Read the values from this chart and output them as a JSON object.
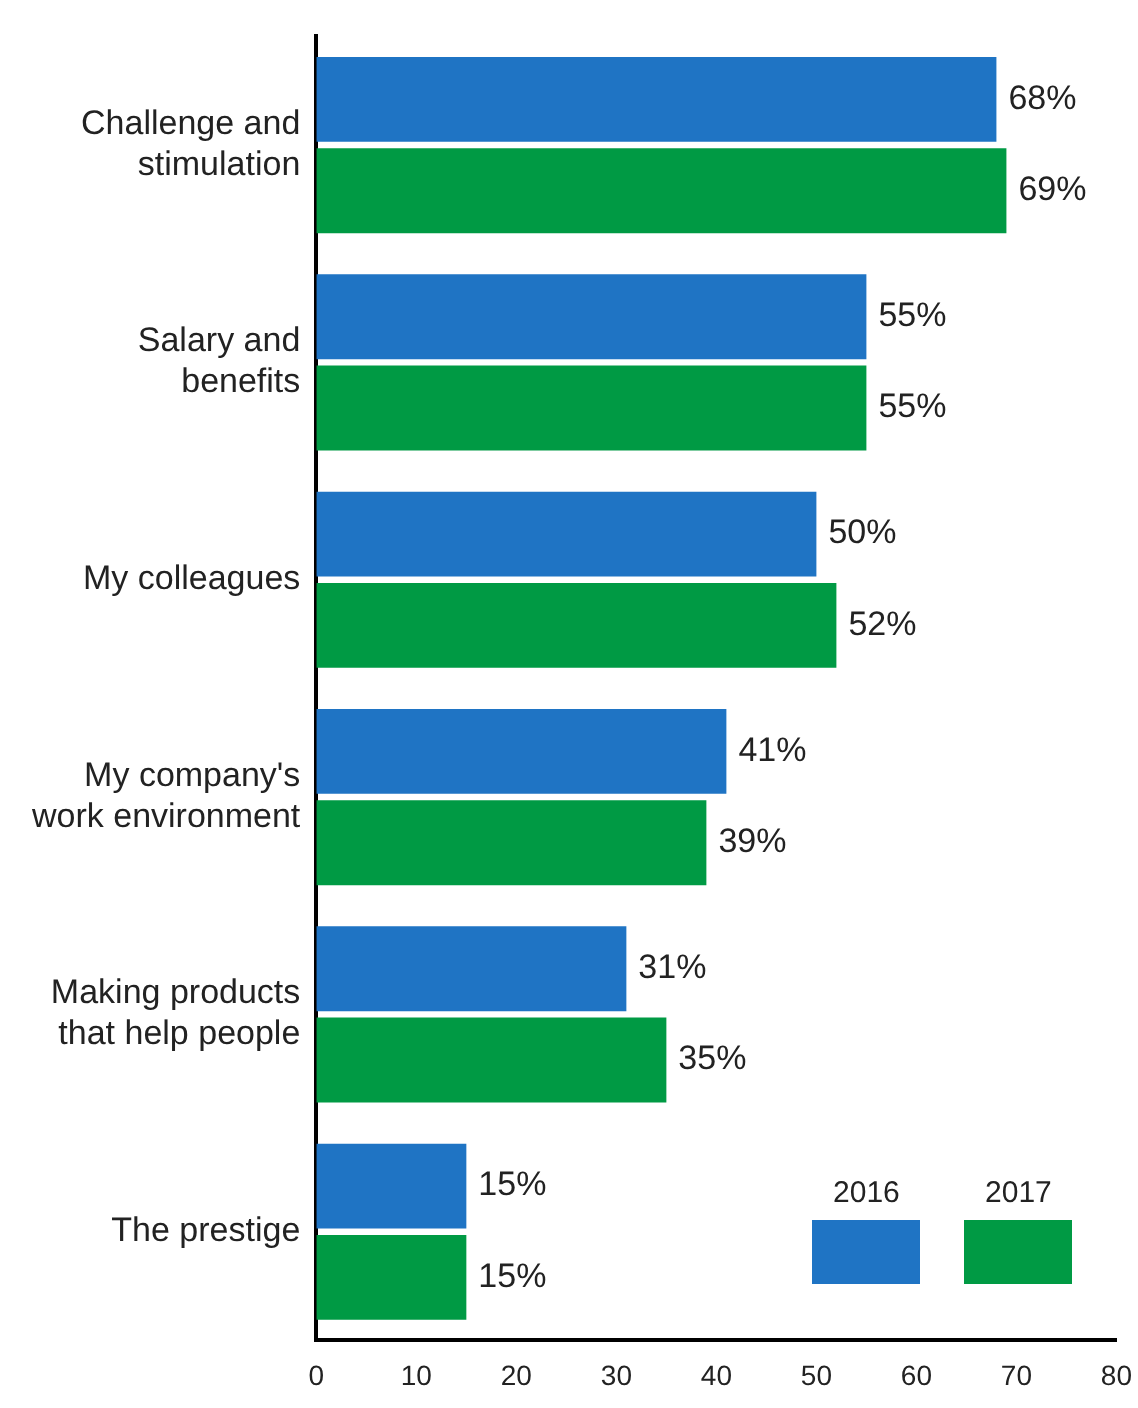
{
  "chart_data": {
    "type": "bar",
    "orientation": "horizontal",
    "categories": [
      "Challenge and\nstimulation",
      "Salary and\nbenefits",
      "My colleagues",
      "My company's\nwork environment",
      "Making products\nthat help people",
      "The prestige"
    ],
    "series": [
      {
        "name": "2016",
        "color": "#1f74c4",
        "values": [
          68,
          55,
          50,
          41,
          31,
          15
        ],
        "value_labels": [
          "68%",
          "55%",
          "50%",
          "41%",
          "31%",
          "15%"
        ]
      },
      {
        "name": "2017",
        "color": "#009a44",
        "values": [
          69,
          55,
          52,
          39,
          35,
          15
        ],
        "value_labels": [
          "69%",
          "55%",
          "52%",
          "39%",
          "35%",
          "15%"
        ]
      }
    ],
    "xlim": [
      0,
      80
    ],
    "xticks": [
      0,
      10,
      20,
      30,
      40,
      50,
      60,
      70,
      80
    ],
    "grid": false,
    "legend": "bottom right"
  }
}
